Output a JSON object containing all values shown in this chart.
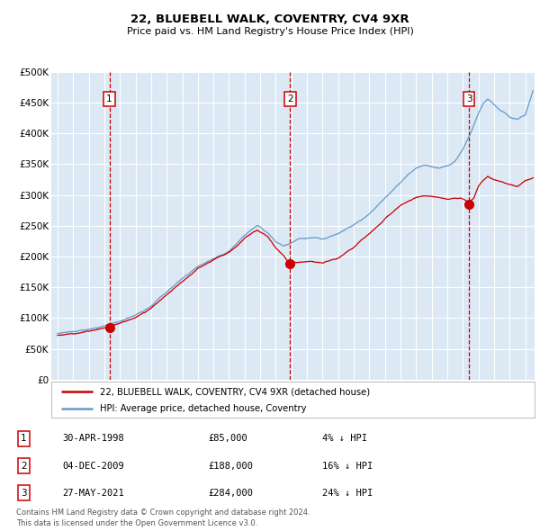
{
  "title": "22, BLUEBELL WALK, COVENTRY, CV4 9XR",
  "subtitle": "Price paid vs. HM Land Registry's House Price Index (HPI)",
  "background_color": "#dce9f5",
  "red_line_color": "#cc0000",
  "blue_line_color": "#6699cc",
  "red_dot_color": "#cc0000",
  "vline_color": "#cc0000",
  "grid_color": "#ffffff",
  "ylim": [
    0,
    500000
  ],
  "yticks": [
    0,
    50000,
    100000,
    150000,
    200000,
    250000,
    300000,
    350000,
    400000,
    450000,
    500000
  ],
  "ytick_labels": [
    "£0",
    "£50K",
    "£100K",
    "£150K",
    "£200K",
    "£250K",
    "£300K",
    "£350K",
    "£400K",
    "£450K",
    "£500K"
  ],
  "xlim_start": 1994.6,
  "xlim_end": 2025.6,
  "xticks": [
    1995,
    1996,
    1997,
    1998,
    1999,
    2000,
    2001,
    2002,
    2003,
    2004,
    2005,
    2006,
    2007,
    2008,
    2009,
    2010,
    2011,
    2012,
    2013,
    2014,
    2015,
    2016,
    2017,
    2018,
    2019,
    2020,
    2021,
    2022,
    2023,
    2024,
    2025
  ],
  "sale_dates_decimal": [
    1998.33,
    2009.92,
    2021.4
  ],
  "sale_prices": [
    85000,
    188000,
    284000
  ],
  "sale_labels": [
    "1",
    "2",
    "3"
  ],
  "sale_date_strings": [
    "30-APR-1998",
    "04-DEC-2009",
    "27-MAY-2021"
  ],
  "sale_price_strings": [
    "£85,000",
    "£188,000",
    "£284,000"
  ],
  "sale_pct_strings": [
    "4% ↓ HPI",
    "16% ↓ HPI",
    "24% ↓ HPI"
  ],
  "legend_line1": "22, BLUEBELL WALK, COVENTRY, CV4 9XR (detached house)",
  "legend_line2": "HPI: Average price, detached house, Coventry",
  "footer_line1": "Contains HM Land Registry data © Crown copyright and database right 2024.",
  "footer_line2": "This data is licensed under the Open Government Licence v3.0.",
  "hpi_waypoints": [
    [
      1995.0,
      75000
    ],
    [
      1996.0,
      77000
    ],
    [
      1997.0,
      80000
    ],
    [
      1998.0,
      86000
    ],
    [
      1999.0,
      92000
    ],
    [
      2000.0,
      103000
    ],
    [
      2001.0,
      118000
    ],
    [
      2002.0,
      140000
    ],
    [
      2003.0,
      163000
    ],
    [
      2004.0,
      185000
    ],
    [
      2005.0,
      198000
    ],
    [
      2006.0,
      210000
    ],
    [
      2007.0,
      235000
    ],
    [
      2007.8,
      250000
    ],
    [
      2008.5,
      238000
    ],
    [
      2009.0,
      225000
    ],
    [
      2009.5,
      218000
    ],
    [
      2010.0,
      222000
    ],
    [
      2010.5,
      228000
    ],
    [
      2011.0,
      228000
    ],
    [
      2011.5,
      230000
    ],
    [
      2012.0,
      228000
    ],
    [
      2013.0,
      238000
    ],
    [
      2014.0,
      255000
    ],
    [
      2015.0,
      272000
    ],
    [
      2016.0,
      298000
    ],
    [
      2017.0,
      325000
    ],
    [
      2017.5,
      338000
    ],
    [
      2018.0,
      348000
    ],
    [
      2018.5,
      352000
    ],
    [
      2019.0,
      350000
    ],
    [
      2019.5,
      348000
    ],
    [
      2020.0,
      350000
    ],
    [
      2020.5,
      358000
    ],
    [
      2021.0,
      378000
    ],
    [
      2021.5,
      405000
    ],
    [
      2022.0,
      438000
    ],
    [
      2022.3,
      455000
    ],
    [
      2022.6,
      462000
    ],
    [
      2022.9,
      455000
    ],
    [
      2023.3,
      445000
    ],
    [
      2023.7,
      438000
    ],
    [
      2024.0,
      432000
    ],
    [
      2024.5,
      428000
    ],
    [
      2025.0,
      435000
    ],
    [
      2025.5,
      475000
    ]
  ],
  "red_waypoints": [
    [
      1995.0,
      72000
    ],
    [
      1996.0,
      75000
    ],
    [
      1997.0,
      78000
    ],
    [
      1998.0,
      84000
    ],
    [
      1998.33,
      85000
    ],
    [
      1999.0,
      90000
    ],
    [
      2000.0,
      100000
    ],
    [
      2001.0,
      115000
    ],
    [
      2002.0,
      137000
    ],
    [
      2003.0,
      160000
    ],
    [
      2004.0,
      182000
    ],
    [
      2005.0,
      195000
    ],
    [
      2006.0,
      207000
    ],
    [
      2007.0,
      230000
    ],
    [
      2007.8,
      243000
    ],
    [
      2008.5,
      232000
    ],
    [
      2009.0,
      215000
    ],
    [
      2009.5,
      202000
    ],
    [
      2009.92,
      188000
    ],
    [
      2010.1,
      192000
    ],
    [
      2010.5,
      193000
    ],
    [
      2011.0,
      192000
    ],
    [
      2011.5,
      192000
    ],
    [
      2012.0,
      190000
    ],
    [
      2013.0,
      198000
    ],
    [
      2014.0,
      215000
    ],
    [
      2015.0,
      238000
    ],
    [
      2016.0,
      262000
    ],
    [
      2017.0,
      282000
    ],
    [
      2017.5,
      290000
    ],
    [
      2018.0,
      295000
    ],
    [
      2018.5,
      298000
    ],
    [
      2019.0,
      297000
    ],
    [
      2019.5,
      293000
    ],
    [
      2020.0,
      290000
    ],
    [
      2020.5,
      292000
    ],
    [
      2021.0,
      290000
    ],
    [
      2021.4,
      284000
    ],
    [
      2021.7,
      290000
    ],
    [
      2022.0,
      308000
    ],
    [
      2022.3,
      318000
    ],
    [
      2022.6,
      326000
    ],
    [
      2022.9,
      322000
    ],
    [
      2023.3,
      318000
    ],
    [
      2023.7,
      315000
    ],
    [
      2024.0,
      313000
    ],
    [
      2024.5,
      310000
    ],
    [
      2025.0,
      320000
    ],
    [
      2025.5,
      325000
    ]
  ]
}
